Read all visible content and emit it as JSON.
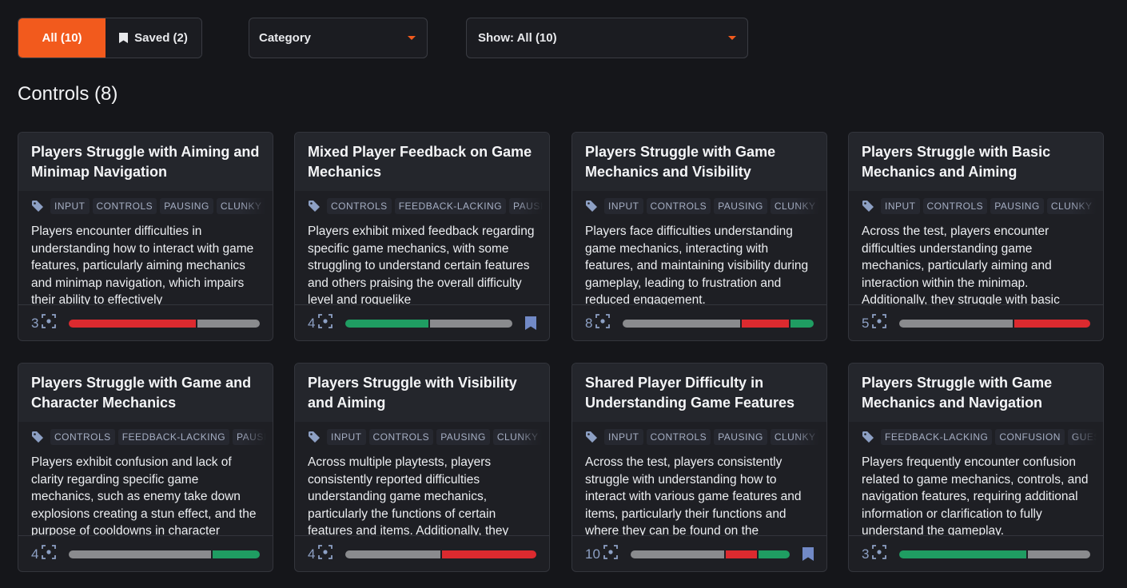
{
  "filters": {
    "all_label": "All (10)",
    "saved_label": "Saved (2)",
    "category_label": "Category",
    "show_label": "Show: All (10)"
  },
  "section": {
    "title": "Controls (8)"
  },
  "colors": {
    "accent": "#f25a1d",
    "gray": "#8a8b8e",
    "red": "#dc2a2f",
    "green": "#1f9d62",
    "count": "#8da0c4"
  },
  "cards": [
    {
      "title": "Players Struggle with Aiming and Minimap Navigation",
      "tags": [
        "INPUT",
        "CONTROLS",
        "PAUSING",
        "CLUNKY"
      ],
      "description": "Players encounter difficulties in understanding how to interact with game features, particularly aiming mechanics and minimap navigation, which impairs their ability to effectively",
      "count": "3",
      "bar": [
        {
          "color": "red",
          "fraction": 0.67
        },
        {
          "color": "gray",
          "fraction": 0.33
        }
      ],
      "saved": false
    },
    {
      "title": "Mixed Player Feedback on Game Mechanics",
      "tags": [
        "CONTROLS",
        "FEEDBACK-LACKING",
        "PAUSING"
      ],
      "description": "Players exhibit mixed feedback regarding specific game mechanics, with some struggling to understand certain features and others praising the overall difficulty level and roguelike",
      "count": "4",
      "bar": [
        {
          "color": "green",
          "fraction": 0.5
        },
        {
          "color": "gray",
          "fraction": 0.5
        }
      ],
      "saved": true
    },
    {
      "title": "Players Struggle with Game Mechanics and Visibility",
      "tags": [
        "INPUT",
        "CONTROLS",
        "PAUSING",
        "CLUNKY"
      ],
      "description": "Players face difficulties understanding game mechanics, interacting with features, and maintaining visibility during gameplay, leading to frustration and reduced engagement.",
      "count": "8",
      "bar": [
        {
          "color": "gray",
          "fraction": 0.625
        },
        {
          "color": "red",
          "fraction": 0.25
        },
        {
          "color": "green",
          "fraction": 0.125
        }
      ],
      "saved": false
    },
    {
      "title": "Players Struggle with Basic Mechanics and Aiming",
      "tags": [
        "INPUT",
        "CONTROLS",
        "PAUSING",
        "CLUNKY"
      ],
      "description": "Across the test, players encounter difficulties understanding game mechanics, particularly aiming and interaction within the minimap. Additionally, they struggle with basic",
      "count": "5",
      "bar": [
        {
          "color": "gray",
          "fraction": 0.6
        },
        {
          "color": "red",
          "fraction": 0.4
        }
      ],
      "saved": false
    },
    {
      "title": "Players Struggle with Game and Character Mechanics",
      "tags": [
        "CONTROLS",
        "FEEDBACK-LACKING",
        "PAUSING"
      ],
      "description": "Players exhibit confusion and lack of clarity regarding specific game mechanics, such as enemy take down explosions creating a stun effect, and the purpose of cooldowns in character",
      "count": "4",
      "bar": [
        {
          "color": "gray",
          "fraction": 0.75
        },
        {
          "color": "green",
          "fraction": 0.25
        }
      ],
      "saved": false
    },
    {
      "title": "Players Struggle with Visibility and Aiming",
      "tags": [
        "INPUT",
        "CONTROLS",
        "PAUSING",
        "CLUNKY"
      ],
      "description": "Across multiple playtests, players consistently reported difficulties understanding game mechanics, particularly the functions of certain features and items. Additionally, they",
      "count": "4",
      "bar": [
        {
          "color": "gray",
          "fraction": 0.5
        },
        {
          "color": "red",
          "fraction": 0.5
        }
      ],
      "saved": false
    },
    {
      "title": "Shared Player Difficulty in Understanding Game Features",
      "tags": [
        "INPUT",
        "CONTROLS",
        "PAUSING",
        "CLUNKY"
      ],
      "description": "Across the test, players consistently struggle with understanding how to interact with various game features and items, particularly their functions and where they can be found on the",
      "count": "10",
      "bar": [
        {
          "color": "gray",
          "fraction": 0.6
        },
        {
          "color": "red",
          "fraction": 0.2
        },
        {
          "color": "green",
          "fraction": 0.2
        }
      ],
      "saved": true
    },
    {
      "title": "Players Struggle with Game Mechanics and Navigation",
      "tags": [
        "FEEDBACK-LACKING",
        "CONFUSION",
        "GUESSING"
      ],
      "description": "Players frequently encounter confusion related to game mechanics, controls, and navigation features, requiring additional information or clarification to fully understand the gameplay.",
      "count": "3",
      "bar": [
        {
          "color": "green",
          "fraction": 0.67
        },
        {
          "color": "gray",
          "fraction": 0.33
        }
      ],
      "saved": false
    }
  ]
}
